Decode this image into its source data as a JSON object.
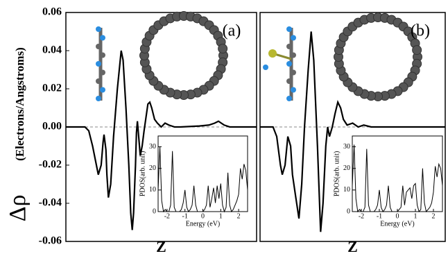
{
  "chart_data": [
    {
      "type": "line",
      "annotation": "(a)",
      "xlabel": "Z",
      "ylabel_symbol": "Δρ",
      "ylabel": "(Electrons/Angstroms)",
      "xlim": [
        0,
        100
      ],
      "ylim": [
        -0.06,
        0.06
      ],
      "yticks": [
        -0.06,
        -0.04,
        -0.02,
        {
          "value": 0,
          "label": "0.00"
        },
        0.02,
        0.04,
        0.06
      ],
      "zero_line": true,
      "color": "#000000",
      "x": [
        0,
        10,
        12,
        14,
        16,
        17,
        18.5,
        19.5,
        20,
        21,
        21.5,
        22.3,
        23.5,
        25,
        27,
        28.5,
        29,
        30,
        31.5,
        33,
        34,
        34.8,
        35.5,
        36.5,
        37,
        37.5,
        38,
        39,
        40,
        41,
        42,
        43,
        44,
        45,
        46.5,
        48,
        50,
        52,
        54,
        57,
        60,
        70,
        75,
        78,
        80,
        83,
        86,
        100
      ],
      "values": [
        0,
        0,
        -0.002,
        -0.01,
        -0.02,
        -0.025,
        -0.02,
        -0.008,
        -0.004,
        -0.012,
        -0.025,
        -0.037,
        -0.03,
        -0.005,
        0.02,
        0.035,
        0.04,
        0.035,
        0.01,
        -0.02,
        -0.045,
        -0.054,
        -0.045,
        -0.02,
        -0.003,
        0.003,
        -0.003,
        -0.015,
        -0.01,
        -0.002,
        0.005,
        0.012,
        0.013,
        0.01,
        0.004,
        0.002,
        0,
        0.002,
        0.001,
        0,
        0,
        0.0005,
        0.001,
        0.002,
        0.003,
        0.001,
        0,
        0
      ]
    },
    {
      "type": "line",
      "xlabel": "Energy (eV)",
      "ylabel": "PDOS(arb. unit)",
      "xlim": [
        -2.5,
        2.5
      ],
      "ylim": [
        0,
        35
      ],
      "xticks": [
        -2,
        -1,
        0,
        1,
        2
      ],
      "yticks": [
        0,
        10,
        20,
        30
      ],
      "color": "#000000",
      "x": [
        -2.5,
        -2.4,
        -2.3,
        -2.2,
        -2.1,
        -2.0,
        -1.9,
        -1.8,
        -1.7,
        -1.6,
        -1.5,
        -1.4,
        -1.3,
        -1.2,
        -1.1,
        -1.0,
        -0.9,
        -0.8,
        -0.7,
        -0.6,
        -0.5,
        -0.4,
        -0.3,
        -0.2,
        -0.1,
        0.0,
        0.1,
        0.2,
        0.3,
        0.4,
        0.5,
        0.6,
        0.7,
        0.8,
        0.9,
        1.0,
        1.1,
        1.2,
        1.3,
        1.4,
        1.5,
        1.6,
        1.7,
        1.8,
        1.9,
        2.0,
        2.1,
        2.2,
        2.3,
        2.4,
        2.5
      ],
      "values": [
        10,
        30,
        5,
        0,
        1,
        0,
        0,
        3,
        28,
        2,
        0,
        0,
        0,
        1,
        4,
        10,
        2,
        0,
        1,
        3,
        12,
        3,
        0,
        0,
        0,
        0,
        1,
        3,
        12,
        2,
        6,
        11,
        4,
        12,
        6,
        13,
        3,
        0,
        2,
        18,
        3,
        0,
        1,
        3,
        5,
        8,
        20,
        15,
        22,
        19,
        10
      ]
    },
    {
      "type": "line",
      "annotation": "(b)",
      "xlabel": "Z",
      "xlim": [
        0,
        100
      ],
      "ylim": [
        -0.06,
        0.06
      ],
      "zero_line": true,
      "color": "#000000",
      "x": [
        0,
        7,
        9,
        11,
        12,
        13.5,
        15,
        16.5,
        17.5,
        19,
        21,
        22.5,
        24,
        26,
        27.6,
        29,
        31,
        32.7,
        34,
        35.5,
        36.5,
        37.5,
        39,
        40.5,
        42,
        43.5,
        45,
        47,
        50,
        53,
        56,
        60,
        100
      ],
      "values": [
        0,
        0,
        -0.005,
        -0.02,
        -0.025,
        -0.02,
        -0.005,
        -0.01,
        -0.025,
        -0.035,
        -0.048,
        -0.03,
        0.0,
        0.03,
        0.05,
        0.035,
        -0.01,
        -0.055,
        -0.04,
        -0.01,
        0.0,
        -0.005,
        0.0,
        0.007,
        0.013,
        0.01,
        0.004,
        0.001,
        0.002,
        0.0,
        0.001,
        0,
        0
      ]
    },
    {
      "type": "line",
      "xlabel": "Energy (eV)",
      "ylabel": "PDOS(arb. unit)",
      "xlim": [
        -2.5,
        2.5
      ],
      "ylim": [
        0,
        35
      ],
      "xticks": [
        -2,
        -1,
        0,
        1,
        2
      ],
      "yticks": [
        0,
        10,
        20,
        30
      ],
      "color": "#000000",
      "x": [
        -2.5,
        -2.4,
        -2.3,
        -2.2,
        -2.1,
        -2.0,
        -1.9,
        -1.8,
        -1.7,
        -1.6,
        -1.5,
        -1.4,
        -1.3,
        -1.2,
        -1.1,
        -1.0,
        -0.9,
        -0.8,
        -0.7,
        -0.6,
        -0.5,
        -0.4,
        -0.3,
        -0.2,
        -0.1,
        0.0,
        0.1,
        0.2,
        0.3,
        0.4,
        0.5,
        0.6,
        0.7,
        0.8,
        0.9,
        1.0,
        1.1,
        1.2,
        1.3,
        1.4,
        1.5,
        1.6,
        1.7,
        1.8,
        1.9,
        2.0,
        2.1,
        2.2,
        2.3,
        2.4,
        2.5
      ],
      "values": [
        12,
        31,
        6,
        0,
        1,
        0,
        0,
        2,
        29,
        3,
        0,
        0,
        0,
        1,
        3,
        10,
        2,
        0,
        1,
        3,
        12,
        2,
        0,
        0,
        0,
        0,
        1,
        2,
        12,
        3,
        9,
        10,
        11,
        6,
        12,
        13,
        3,
        0,
        1,
        20,
        4,
        0,
        1,
        2,
        4,
        9,
        21,
        16,
        22,
        20,
        12
      ]
    }
  ]
}
